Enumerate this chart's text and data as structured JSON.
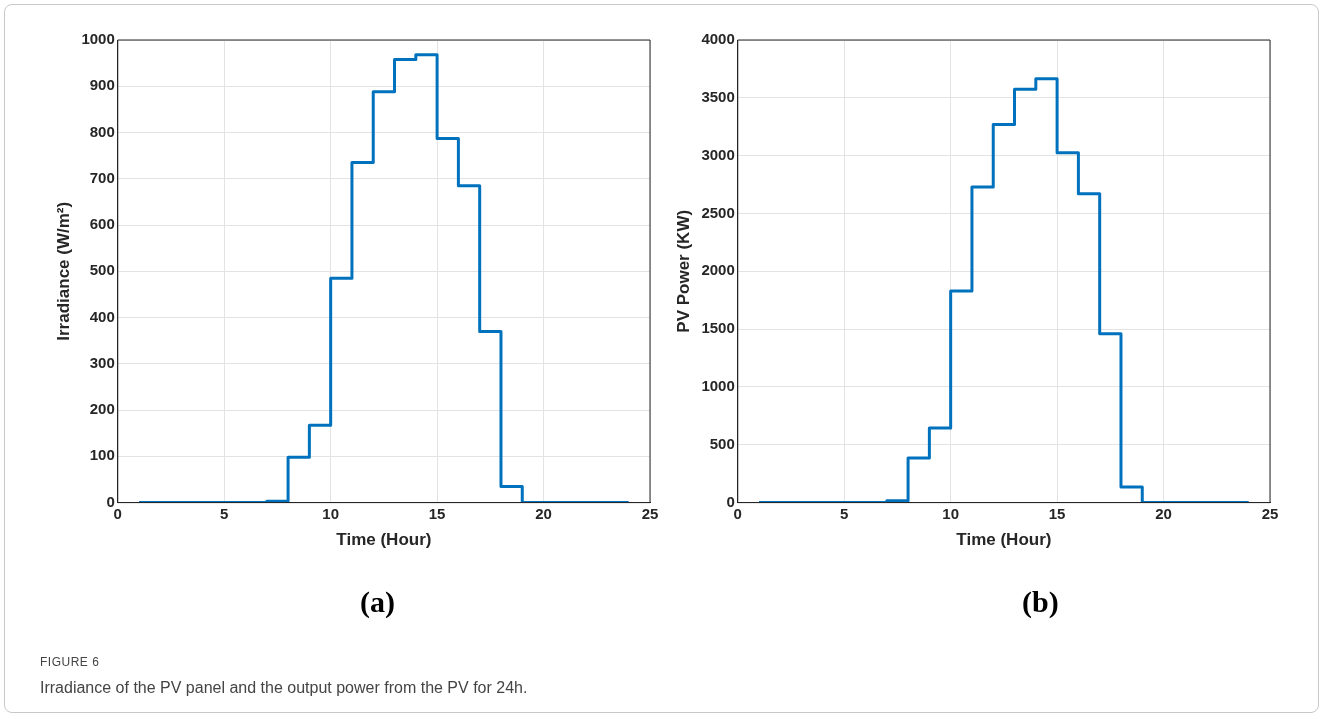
{
  "chart_data": [
    {
      "type": "step",
      "title": "(a)",
      "xlabel": "Time (Hour)",
      "ylabel": "Irradiance (W/m²)",
      "x": [
        1,
        2,
        3,
        4,
        5,
        6,
        7,
        8,
        9,
        10,
        11,
        12,
        13,
        14,
        15,
        16,
        17,
        18,
        19,
        20,
        21,
        22,
        23,
        24
      ],
      "series": [
        {
          "color": "#0072bd",
          "values": [
            0,
            0,
            0,
            0,
            0,
            0,
            3,
            98,
            167,
            485,
            735,
            888,
            958,
            968,
            787,
            685,
            370,
            35,
            0,
            0,
            0,
            0,
            0,
            0
          ]
        }
      ],
      "xlim": [
        0,
        25
      ],
      "xticks": [
        0,
        5,
        10,
        15,
        20,
        25
      ],
      "ylim": [
        0,
        1000
      ],
      "yticks": [
        0,
        100,
        200,
        300,
        400,
        500,
        600,
        700,
        800,
        900,
        1000
      ],
      "grid": true,
      "marker": "none",
      "annotations": [
        "FIGURE 6",
        "Irradiance of the PV panel and the output power from the PV for 24h."
      ]
    },
    {
      "type": "step",
      "title": "(b)",
      "xlabel": "Time (Hour)",
      "ylabel": "PV Power (KW)",
      "x": [
        1,
        2,
        3,
        4,
        5,
        6,
        7,
        8,
        9,
        10,
        11,
        12,
        13,
        14,
        15,
        16,
        17,
        18,
        19,
        20,
        21,
        22,
        23,
        24
      ],
      "series": [
        {
          "color": "#0072bd",
          "values": [
            0,
            0,
            0,
            0,
            0,
            0,
            15,
            385,
            645,
            1830,
            2730,
            3270,
            3575,
            3665,
            3025,
            2670,
            1460,
            135,
            0,
            0,
            0,
            0,
            0,
            0
          ]
        }
      ],
      "xlim": [
        0,
        25
      ],
      "xticks": [
        0,
        5,
        10,
        15,
        20,
        25
      ],
      "ylim": [
        0,
        4000
      ],
      "yticks": [
        0,
        500,
        1000,
        1500,
        2000,
        2500,
        3000,
        3500,
        4000
      ],
      "grid": true,
      "marker": "none"
    }
  ]
}
